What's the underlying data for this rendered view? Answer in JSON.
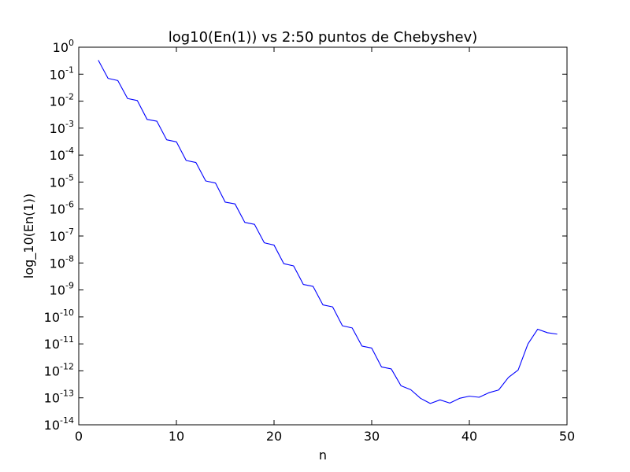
{
  "chart_data": {
    "type": "line",
    "title": "log10(En(1)) vs 2:50 puntos de Chebyshev)",
    "xlabel": "n",
    "ylabel": "log_10(En(1))",
    "xlim": [
      0,
      50
    ],
    "ylim": [
      1e-14,
      1
    ],
    "yscale": "log",
    "grid": false,
    "x_ticks": [
      0,
      10,
      20,
      30,
      40,
      50
    ],
    "y_ticks": [
      {
        "base": "10",
        "exp": "0"
      },
      {
        "base": "10",
        "exp": "-1"
      },
      {
        "base": "10",
        "exp": "-2"
      },
      {
        "base": "10",
        "exp": "-3"
      },
      {
        "base": "10",
        "exp": "-4"
      },
      {
        "base": "10",
        "exp": "-5"
      },
      {
        "base": "10",
        "exp": "-6"
      },
      {
        "base": "10",
        "exp": "-7"
      },
      {
        "base": "10",
        "exp": "-8"
      },
      {
        "base": "10",
        "exp": "-9"
      },
      {
        "base": "10",
        "exp": "-10"
      },
      {
        "base": "10",
        "exp": "-11"
      },
      {
        "base": "10",
        "exp": "-12"
      },
      {
        "base": "10",
        "exp": "-13"
      },
      {
        "base": "10",
        "exp": "-14"
      }
    ],
    "series": [
      {
        "color": "#0000ff",
        "x": [
          2,
          3,
          4,
          5,
          6,
          7,
          8,
          9,
          10,
          11,
          12,
          13,
          14,
          15,
          16,
          17,
          18,
          19,
          20,
          21,
          22,
          23,
          24,
          25,
          26,
          27,
          28,
          29,
          30,
          31,
          32,
          33,
          34,
          35,
          36,
          37,
          38,
          39,
          40,
          41,
          42,
          43,
          44,
          45,
          46,
          47,
          48,
          49
        ],
        "y": [
          0.33,
          0.07,
          0.058,
          0.0125,
          0.0105,
          0.0021,
          0.0018,
          0.00037,
          0.00031,
          6.3e-05,
          5.3e-05,
          1.1e-05,
          9.2e-06,
          1.8e-06,
          1.55e-06,
          3.2e-07,
          2.7e-07,
          5.6e-08,
          4.6e-08,
          9.4e-09,
          7.8e-09,
          1.6e-09,
          1.35e-09,
          2.8e-10,
          2.35e-10,
          4.7e-11,
          3.9e-11,
          8.3e-12,
          7e-12,
          1.4e-12,
          1.18e-12,
          2.8e-13,
          2e-13,
          9.6e-14,
          6.2e-14,
          8.4e-14,
          6.4e-14,
          9.6e-14,
          1.15e-13,
          1.05e-13,
          1.55e-13,
          1.95e-13,
          5.7e-13,
          1.08e-12,
          1e-11,
          3.5e-11,
          2.6e-11,
          2.3e-11
        ]
      }
    ]
  }
}
